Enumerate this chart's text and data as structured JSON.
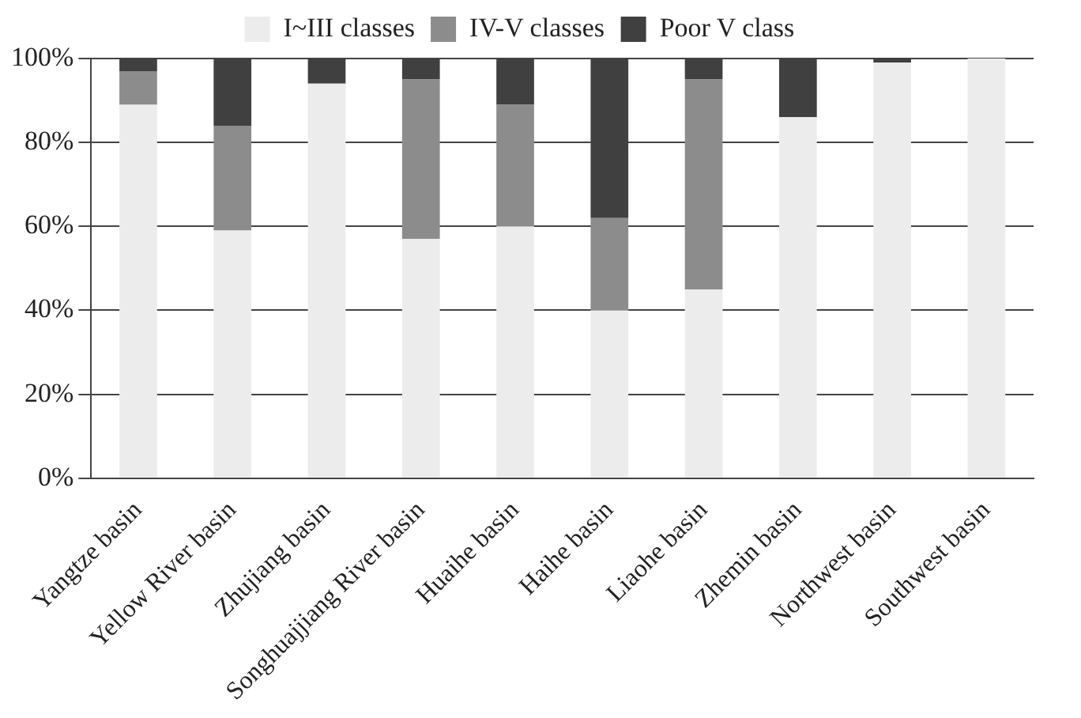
{
  "chart_data": {
    "type": "bar",
    "stacked": true,
    "categories": [
      "Yangtze basin",
      "Yellow River basin",
      "Zhujiang basin",
      "Songhuajjiang River basin",
      "Huaihe basin",
      "Haihe basin",
      "Liaohe basin",
      "Zhemin basin",
      "Northwest basin",
      "Southwest basin"
    ],
    "series": [
      {
        "name": "I~III classes",
        "color": "#ececec",
        "values": [
          89,
          59,
          94,
          57,
          60,
          40,
          45,
          86,
          99,
          100
        ]
      },
      {
        "name": "IV-V classes",
        "color": "#8c8c8c",
        "values": [
          8,
          25,
          0,
          38,
          29,
          22,
          50,
          0,
          0,
          0
        ]
      },
      {
        "name": "Poor V class",
        "color": "#404040",
        "values": [
          3,
          16,
          6,
          5,
          11,
          38,
          5,
          14,
          1,
          0
        ]
      }
    ],
    "ylim": [
      0,
      100
    ],
    "yticks": [
      {
        "value": 0,
        "label": "0%"
      },
      {
        "value": 20,
        "label": "20%"
      },
      {
        "value": 40,
        "label": "40%"
      },
      {
        "value": 60,
        "label": "60%"
      },
      {
        "value": 80,
        "label": "80%"
      },
      {
        "value": 100,
        "label": "100%"
      }
    ],
    "grid": "y",
    "legend": "top"
  }
}
